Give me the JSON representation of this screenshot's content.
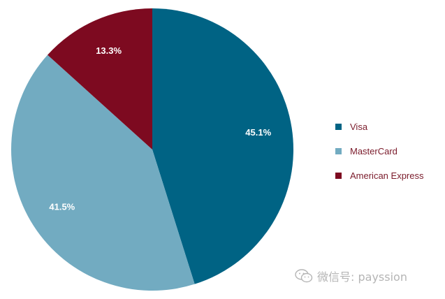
{
  "chart_data": {
    "type": "pie",
    "categories": [
      "Visa",
      "MasterCard",
      "American Express"
    ],
    "values": [
      45.1,
      41.5,
      13.3
    ],
    "labels": [
      "45.1%",
      "41.5%",
      "13.3%"
    ],
    "colors": [
      "#006384",
      "#72abc1",
      "#7d0a20"
    ],
    "start_angle_deg": 0,
    "direction": "clockwise",
    "legend_position": "right"
  },
  "legend": {
    "items": [
      {
        "label": "Visa",
        "color": "#006384"
      },
      {
        "label": "MasterCard",
        "color": "#72abc1"
      },
      {
        "label": "American Express",
        "color": "#7d0a20"
      }
    ]
  },
  "watermark": {
    "text": "微信号: payssion",
    "icon": "wechat-icon"
  }
}
